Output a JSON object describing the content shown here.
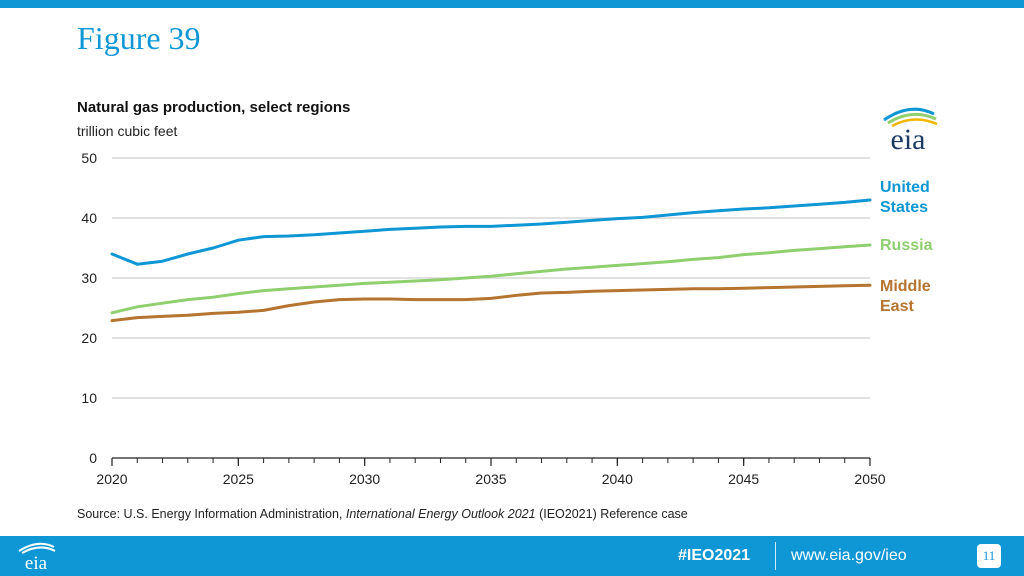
{
  "header": {
    "figure_title": "Figure 39"
  },
  "logo": {
    "icon": "eia-logo-icon",
    "text": "eia"
  },
  "chart_data": {
    "type": "line",
    "title": "Natural gas production, select regions",
    "ylabel": "trillion cubic feet",
    "xlabel": "",
    "xlim": [
      2020,
      2050
    ],
    "ylim": [
      0,
      50
    ],
    "x_ticks": [
      "2020",
      "2025",
      "2030",
      "2035",
      "2040",
      "2045",
      "2050"
    ],
    "y_ticks": [
      "0",
      "10",
      "20",
      "30",
      "40",
      "50"
    ],
    "grid": true,
    "legend": "right, inline labels",
    "x": [
      2020,
      2021,
      2022,
      2023,
      2024,
      2025,
      2026,
      2027,
      2028,
      2029,
      2030,
      2031,
      2032,
      2033,
      2034,
      2035,
      2036,
      2037,
      2038,
      2039,
      2040,
      2041,
      2042,
      2043,
      2044,
      2045,
      2046,
      2047,
      2048,
      2049,
      2050
    ],
    "series": [
      {
        "name": "United States",
        "label_lines": [
          "United",
          "States"
        ],
        "color": "#0f97d5",
        "values": [
          34.0,
          32.3,
          32.8,
          34.0,
          35.0,
          36.3,
          36.9,
          37.0,
          37.2,
          37.5,
          37.8,
          38.1,
          38.3,
          38.5,
          38.6,
          38.6,
          38.8,
          39.0,
          39.3,
          39.6,
          39.9,
          40.1,
          40.5,
          40.9,
          41.2,
          41.5,
          41.7,
          42.0,
          42.3,
          42.6,
          43.0
        ]
      },
      {
        "name": "Russia",
        "label_lines": [
          "Russia"
        ],
        "color": "#8fcf6e",
        "values": [
          24.2,
          25.2,
          25.8,
          26.4,
          26.8,
          27.4,
          27.9,
          28.2,
          28.5,
          28.8,
          29.1,
          29.3,
          29.5,
          29.7,
          30.0,
          30.3,
          30.7,
          31.1,
          31.5,
          31.8,
          32.1,
          32.4,
          32.7,
          33.1,
          33.4,
          33.9,
          34.2,
          34.6,
          34.9,
          35.2,
          35.5
        ]
      },
      {
        "name": "Middle East",
        "label_lines": [
          "Middle",
          "East"
        ],
        "color": "#b5742f",
        "values": [
          22.9,
          23.4,
          23.6,
          23.8,
          24.1,
          24.3,
          24.6,
          25.4,
          26.0,
          26.4,
          26.5,
          26.5,
          26.4,
          26.4,
          26.4,
          26.6,
          27.1,
          27.5,
          27.6,
          27.8,
          27.9,
          28.0,
          28.1,
          28.2,
          28.2,
          28.3,
          28.4,
          28.5,
          28.6,
          28.7,
          28.8
        ]
      }
    ]
  },
  "source": {
    "prefix": "Source:  U.S. Energy Information Administration, ",
    "italic": "International Energy Outlook 2021",
    "suffix": " (IEO2021) Reference case"
  },
  "footer": {
    "hashtag": "#IEO2021",
    "url": "www.eia.gov/ieo",
    "page_number": "11"
  }
}
